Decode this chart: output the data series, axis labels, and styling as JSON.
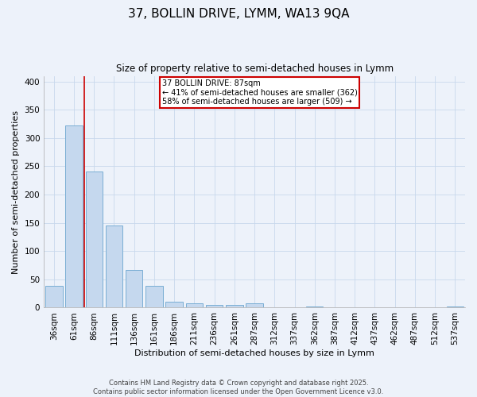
{
  "title1": "37, BOLLIN DRIVE, LYMM, WA13 9QA",
  "title2": "Size of property relative to semi-detached houses in Lymm",
  "xlabel": "Distribution of semi-detached houses by size in Lymm",
  "ylabel": "Number of semi-detached properties",
  "bar_labels": [
    "36sqm",
    "61sqm",
    "86sqm",
    "111sqm",
    "136sqm",
    "161sqm",
    "186sqm",
    "211sqm",
    "236sqm",
    "261sqm",
    "287sqm",
    "312sqm",
    "337sqm",
    "362sqm",
    "387sqm",
    "412sqm",
    "437sqm",
    "462sqm",
    "487sqm",
    "512sqm",
    "537sqm"
  ],
  "bar_values": [
    38,
    322,
    241,
    145,
    67,
    38,
    10,
    8,
    5,
    5,
    7,
    0,
    0,
    2,
    0,
    0,
    0,
    0,
    0,
    0,
    2
  ],
  "bar_color": "#c5d8ee",
  "bar_edge_color": "#7aaed4",
  "grid_color": "#c8d8ec",
  "annotation_line1": "37 BOLLIN DRIVE: 87sqm",
  "annotation_line2": "← 41% of semi-detached houses are smaller (362)",
  "annotation_line3": "58% of semi-detached houses are larger (509) →",
  "annotation_box_color": "#ffffff",
  "annotation_box_edge_color": "#cc0000",
  "vline_color": "#cc0000",
  "footer1": "Contains HM Land Registry data © Crown copyright and database right 2025.",
  "footer2": "Contains public sector information licensed under the Open Government Licence v3.0.",
  "ylim": [
    0,
    410
  ],
  "yticks": [
    0,
    50,
    100,
    150,
    200,
    250,
    300,
    350,
    400
  ],
  "background_color": "#edf2fa",
  "vline_x": 1.5
}
